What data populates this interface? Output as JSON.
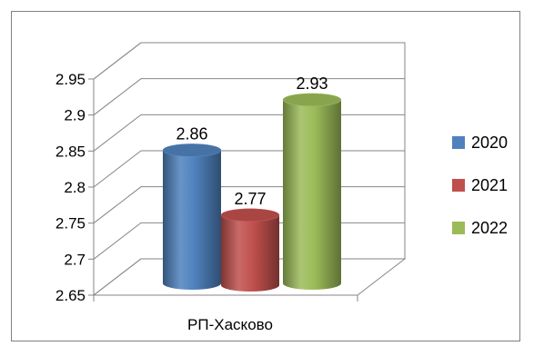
{
  "chart_data": {
    "type": "bar",
    "style": "3d-cylinder",
    "categories": [
      "РП-Хасково"
    ],
    "series": [
      {
        "name": "2020",
        "values": [
          2.86
        ],
        "color": "#4f81bd"
      },
      {
        "name": "2021",
        "values": [
          2.77
        ],
        "color": "#c0504d"
      },
      {
        "name": "2022",
        "values": [
          2.93
        ],
        "color": "#9bbb59"
      }
    ],
    "data_labels": [
      "2.86",
      "2.77",
      "2.93"
    ],
    "yticks": [
      "2.65",
      "2.7",
      "2.75",
      "2.8",
      "2.85",
      "2.9",
      "2.95"
    ],
    "ylim": [
      2.65,
      2.95
    ],
    "grid": true,
    "legend_position": "right"
  }
}
